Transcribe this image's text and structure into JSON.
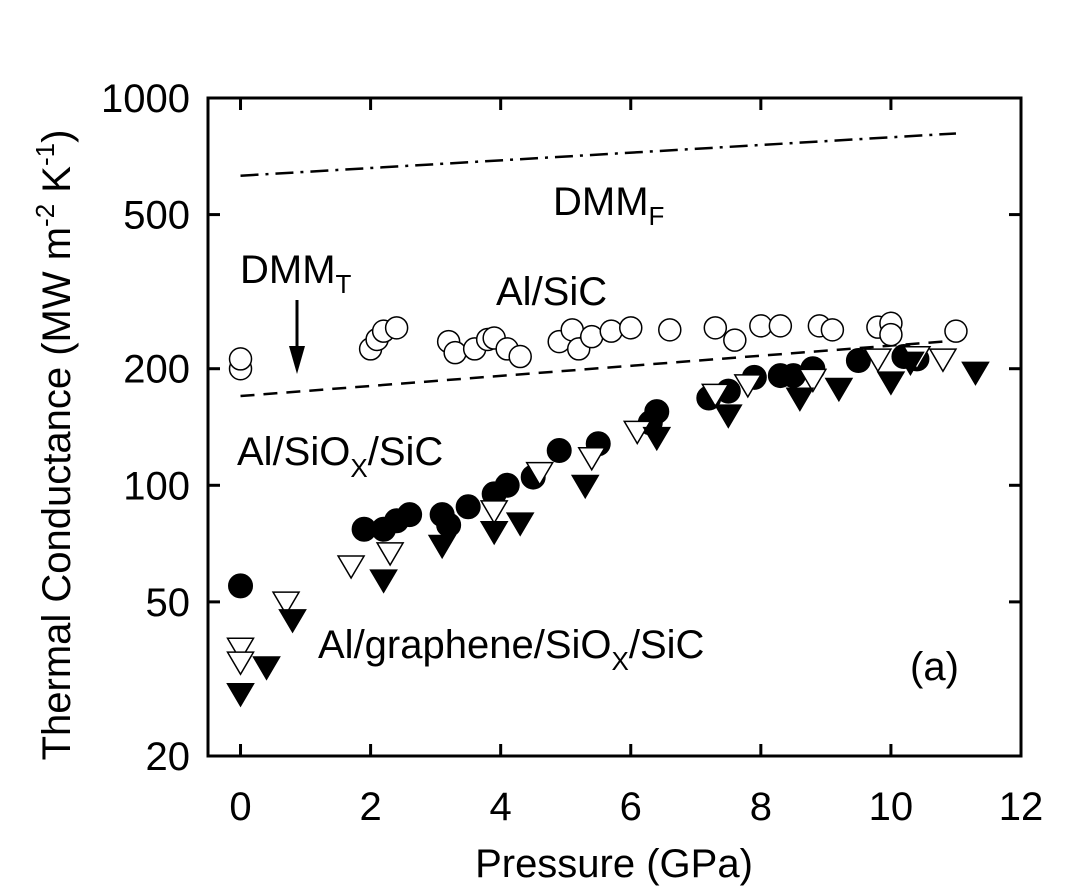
{
  "chart_data": {
    "type": "scatter",
    "title": "",
    "xlabel": "Pressure (GPa)",
    "ylabel": {
      "main": "Thermal Conductance (MW m",
      "exp1": "-2",
      "mid": " K",
      "exp2": "-1",
      "end": ")"
    },
    "xlim": [
      -0.5,
      12
    ],
    "ylim": [
      20,
      1000
    ],
    "yscale": "log",
    "grid": false,
    "xticks": [
      0,
      2,
      4,
      6,
      8,
      10,
      12
    ],
    "xtick_labels": [
      "0",
      "2",
      "4",
      "6",
      "8",
      "10",
      "12"
    ],
    "yticks": [
      20,
      50,
      100,
      200,
      500,
      1000
    ],
    "ytick_labels": [
      "20",
      "50",
      "100",
      "200",
      "500",
      "1000"
    ],
    "panel_label": "(a)",
    "annotations": {
      "dmm_f": {
        "main": "DMM",
        "sub": "F"
      },
      "dmm_t": {
        "main": "DMM",
        "sub": "T"
      },
      "al_sic": "Al/SiC",
      "al_siox_sic": {
        "pre": "Al/SiO",
        "sub": "X",
        "post": "/SiC"
      },
      "al_graphene": {
        "pre": "Al/graphene/SiO",
        "sub": "X",
        "post": "/SiC"
      }
    },
    "lines": [
      {
        "style": "dash-dot",
        "x": [
          0,
          11
        ],
        "y": [
          630,
          810
        ]
      },
      {
        "style": "dashed",
        "x": [
          0,
          10.8
        ],
        "y": [
          170,
          235
        ]
      }
    ],
    "series": [
      {
        "marker": "open-circle",
        "points": [
          [
            0,
            200
          ],
          [
            0,
            212
          ],
          [
            2.0,
            225
          ],
          [
            2.1,
            238
          ],
          [
            2.2,
            250
          ],
          [
            2.4,
            255
          ],
          [
            3.2,
            235
          ],
          [
            3.3,
            220
          ],
          [
            3.6,
            225
          ],
          [
            3.8,
            238
          ],
          [
            3.9,
            240
          ],
          [
            4.1,
            225
          ],
          [
            4.3,
            215
          ],
          [
            4.9,
            235
          ],
          [
            5.1,
            252
          ],
          [
            5.2,
            225
          ],
          [
            5.4,
            242
          ],
          [
            5.7,
            250
          ],
          [
            6.0,
            255
          ],
          [
            6.6,
            252
          ],
          [
            7.3,
            255
          ],
          [
            7.6,
            237
          ],
          [
            8.0,
            258
          ],
          [
            8.3,
            258
          ],
          [
            8.9,
            258
          ],
          [
            9.1,
            252
          ],
          [
            9.8,
            256
          ],
          [
            10.0,
            262
          ],
          [
            10.0,
            245
          ],
          [
            11.0,
            250
          ]
        ]
      },
      {
        "marker": "filled-circle",
        "points": [
          [
            0,
            55
          ],
          [
            1.9,
            77
          ],
          [
            2.2,
            77
          ],
          [
            2.4,
            81
          ],
          [
            2.6,
            84
          ],
          [
            3.1,
            84
          ],
          [
            3.2,
            79
          ],
          [
            3.5,
            88
          ],
          [
            3.9,
            95
          ],
          [
            4.1,
            100
          ],
          [
            4.5,
            105
          ],
          [
            4.9,
            123
          ],
          [
            5.5,
            128
          ],
          [
            6.3,
            145
          ],
          [
            6.4,
            155
          ],
          [
            7.2,
            168
          ],
          [
            7.5,
            175
          ],
          [
            7.9,
            190
          ],
          [
            8.3,
            192
          ],
          [
            8.5,
            192
          ],
          [
            8.8,
            200
          ],
          [
            9.5,
            210
          ],
          [
            10.2,
            215
          ],
          [
            10.4,
            212
          ]
        ]
      },
      {
        "marker": "open-triangle-down",
        "points": [
          [
            0,
            38
          ],
          [
            0,
            35
          ],
          [
            0.7,
            50
          ],
          [
            1.7,
            62
          ],
          [
            2.3,
            67
          ],
          [
            3.9,
            86
          ],
          [
            4.6,
            108
          ],
          [
            5.4,
            118
          ],
          [
            6.1,
            138
          ],
          [
            7.3,
            172
          ],
          [
            7.8,
            182
          ],
          [
            8.8,
            188
          ],
          [
            9.8,
            212
          ],
          [
            10.4,
            215
          ],
          [
            10.8,
            212
          ]
        ]
      },
      {
        "marker": "filled-triangle-down",
        "points": [
          [
            0,
            29
          ],
          [
            0.4,
            34
          ],
          [
            0.8,
            45
          ],
          [
            2.2,
            57
          ],
          [
            3.1,
            70
          ],
          [
            3.9,
            76
          ],
          [
            4.3,
            80
          ],
          [
            5.3,
            100
          ],
          [
            6.4,
            133
          ],
          [
            7.5,
            152
          ],
          [
            8.6,
            168
          ],
          [
            9.2,
            178
          ],
          [
            10.0,
            185
          ],
          [
            10.3,
            208
          ],
          [
            11.3,
            196
          ]
        ]
      }
    ]
  }
}
